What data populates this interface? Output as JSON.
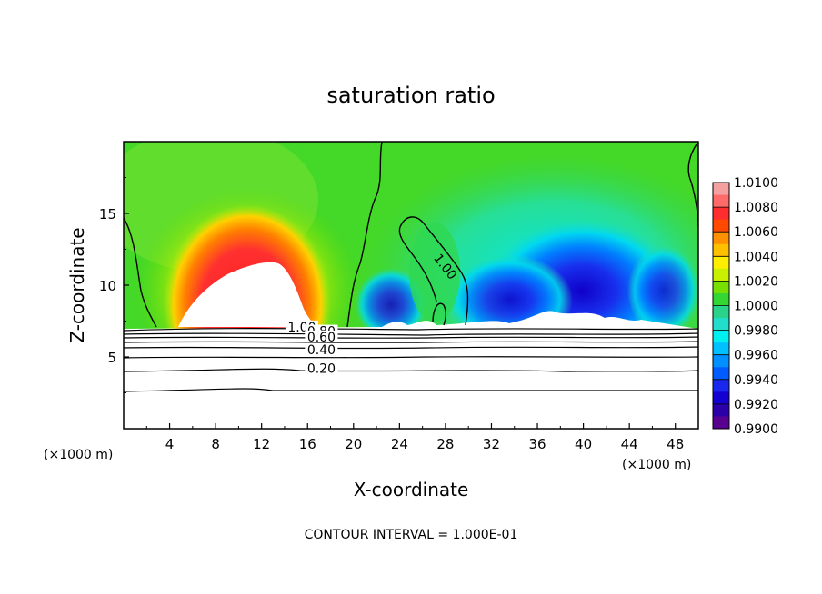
{
  "chart_data": {
    "type": "heatmap",
    "title": "saturation ratio",
    "xlabel": "X-coordinate",
    "ylabel": "Z-coordinate",
    "x_unit_left": "(×1000 m)",
    "x_unit_right": "(×1000 m)",
    "xlim": [
      0,
      50
    ],
    "ylim": [
      0,
      20
    ],
    "x_ticks": [
      4,
      8,
      12,
      16,
      20,
      24,
      28,
      32,
      36,
      40,
      44,
      48
    ],
    "y_ticks": [
      5,
      10,
      15
    ],
    "colorbar": {
      "labels": [
        "1.0100",
        "1.0080",
        "1.0060",
        "1.0040",
        "1.0020",
        "1.0000",
        "0.9980",
        "0.9960",
        "0.9940",
        "0.9920",
        "0.9900"
      ],
      "colors": [
        "#f4a0a0",
        "#ff6a6a",
        "#ff2d2d",
        "#ff4a00",
        "#ff9000",
        "#ffc000",
        "#ffee00",
        "#c8f000",
        "#78e000",
        "#33d633",
        "#2ad28a",
        "#22ddcc",
        "#00f0f0",
        "#00c0ff",
        "#0090ff",
        "#005cff",
        "#1a28ee",
        "#1400d0",
        "#2c00a8",
        "#580090"
      ]
    },
    "contour_labels": [
      {
        "text": "1.00",
        "x": 15.5,
        "z": 7.1
      },
      {
        "text": "0.80",
        "x": 17.2,
        "z": 6.8
      },
      {
        "text": "0.60",
        "x": 17.2,
        "z": 6.4
      },
      {
        "text": "0.40",
        "x": 17.2,
        "z": 5.5
      },
      {
        "text": "0.20",
        "x": 17.2,
        "z": 4.2
      },
      {
        "text": "1.00",
        "x": 28,
        "z": 11.3
      }
    ],
    "contour_interval_text": "CONTOUR INTERVAL = 1.000E-01"
  }
}
